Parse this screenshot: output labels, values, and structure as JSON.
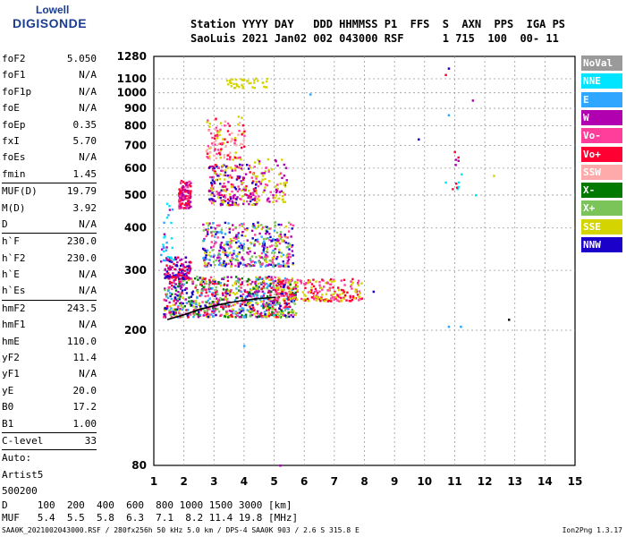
{
  "brand": {
    "line1": "Lowell",
    "line2": "DIGISONDE"
  },
  "header": {
    "line1": "Station YYYY DAY   DDD HHMMSS P1  FFS  S  AXN  PPS  IGA PS",
    "line2": "SaoLuis 2021 Jan02 002 043000 RSF      1 715  100  00- 11"
  },
  "params": [
    {
      "name": "foF2",
      "value": "5.050"
    },
    {
      "name": "foF1",
      "value": "N/A"
    },
    {
      "name": "foF1p",
      "value": "N/A"
    },
    {
      "name": "foE",
      "value": "N/A"
    },
    {
      "name": "foEp",
      "value": "0.35"
    },
    {
      "name": "fxI",
      "value": "5.70"
    },
    {
      "name": "foEs",
      "value": "N/A"
    },
    {
      "name": "fmin",
      "value": "1.45"
    },
    {
      "name": "MUF(D)",
      "value": "19.79",
      "sep": true
    },
    {
      "name": "M(D)",
      "value": "3.92"
    },
    {
      "name": "D",
      "value": "N/A"
    },
    {
      "name": "h`F",
      "value": "230.0",
      "sep": true
    },
    {
      "name": "h`F2",
      "value": "230.0"
    },
    {
      "name": "h`E",
      "value": "N/A"
    },
    {
      "name": "h`Es",
      "value": "N/A"
    },
    {
      "name": "hmF2",
      "value": "243.5",
      "sep": true
    },
    {
      "name": "hmF1",
      "value": "N/A"
    },
    {
      "name": "hmE",
      "value": "110.0"
    },
    {
      "name": "yF2",
      "value": "11.4"
    },
    {
      "name": "yF1",
      "value": "N/A"
    },
    {
      "name": "yE",
      "value": "20.0"
    },
    {
      "name": "B0",
      "value": "17.2"
    },
    {
      "name": "B1",
      "value": "1.00"
    },
    {
      "name": "C-level",
      "value": "33",
      "sep": true
    },
    {
      "name": "Auto:",
      "value": "",
      "sep": true
    },
    {
      "name": "Artist5",
      "value": ""
    },
    {
      "name": "500200",
      "value": ""
    }
  ],
  "legend": [
    {
      "label": "NoVal",
      "color": "#9a9a9a"
    },
    {
      "label": "NNE",
      "color": "#00e5ff"
    },
    {
      "label": "E",
      "color": "#2fa6ff"
    },
    {
      "label": "W",
      "color": "#b000b0"
    },
    {
      "label": "Vo-",
      "color": "#ff3d9a"
    },
    {
      "label": "Vo+",
      "color": "#ff0033"
    },
    {
      "label": "SSW",
      "color": "#ffaaaa"
    },
    {
      "label": "X-",
      "color": "#007a00"
    },
    {
      "label": "X+",
      "color": "#7ac45a"
    },
    {
      "label": "SSE",
      "color": "#d4d400"
    },
    {
      "label": "NNW",
      "color": "#1a00c8"
    }
  ],
  "muf_table": {
    "d_line": "D     100  200  400  600  800 1000 1500 3000 [km]",
    "muf_line": "MUF   5.4  5.5  5.8  6.3  7.1  8.2 11.4 19.8 [MHz]"
  },
  "footer": {
    "left": "SAA0K_2021002043000.RSF / 280fx256h 50 kHz 5.0 km / DPS-4 SAA0K 903 / 2.6 S 315.8 E",
    "right": "Ion2Png 1.3.17"
  },
  "chart_data": {
    "type": "scatter",
    "xlim": [
      1,
      15
    ],
    "ylim": [
      80,
      1280
    ],
    "y_scale": "log",
    "x_ticks": [
      1,
      2,
      3,
      4,
      5,
      6,
      7,
      8,
      9,
      10,
      11,
      12,
      13,
      14,
      15
    ],
    "y_ticks": [
      80,
      200,
      300,
      400,
      500,
      600,
      700,
      800,
      900,
      1000,
      1100,
      1280
    ],
    "grid": true,
    "trace": {
      "name": "",
      "x": [
        1.45,
        2.0,
        2.5,
        3.0,
        3.5,
        4.0,
        4.5,
        5.05
      ],
      "y": [
        215,
        222,
        230,
        236,
        241,
        245,
        248,
        250
      ]
    },
    "scatter_groups": [
      {
        "x": [
          1.3,
          5.7
        ],
        "y": [
          220,
          290
        ],
        "n": 900,
        "colors": [
          "#ff0033",
          "#ff3d9a",
          "#b000b0",
          "#1a00c8",
          "#d4d400",
          "#007a00",
          "#7ac45a",
          "#2fa6ff"
        ]
      },
      {
        "x": [
          5.0,
          7.9
        ],
        "y": [
          245,
          285
        ],
        "n": 220,
        "colors": [
          "#ff0033",
          "#ff3d9a",
          "#d4d400"
        ]
      },
      {
        "x": [
          1.3,
          2.2
        ],
        "y": [
          285,
          330
        ],
        "n": 120,
        "colors": [
          "#1a00c8",
          "#b000b0",
          "#ff0033"
        ]
      },
      {
        "x": [
          2.6,
          5.6
        ],
        "y": [
          310,
          420
        ],
        "n": 420,
        "colors": [
          "#d4d400",
          "#7ac45a",
          "#2fa6ff",
          "#b000b0",
          "#ff3d9a",
          "#1a00c8"
        ]
      },
      {
        "x": [
          1.8,
          2.2
        ],
        "y": [
          460,
          560
        ],
        "n": 120,
        "colors": [
          "#ff0033",
          "#ff3d9a",
          "#b000b0"
        ]
      },
      {
        "x": [
          2.8,
          4.4
        ],
        "y": [
          470,
          620
        ],
        "n": 240,
        "colors": [
          "#1a00c8",
          "#b000b0",
          "#ff0033",
          "#ff3d9a",
          "#d4d400"
        ]
      },
      {
        "x": [
          4.3,
          5.4
        ],
        "y": [
          480,
          650
        ],
        "n": 80,
        "colors": [
          "#d4d400",
          "#ff3d9a",
          "#b000b0"
        ]
      },
      {
        "x": [
          2.7,
          4.0
        ],
        "y": [
          640,
          860
        ],
        "n": 110,
        "colors": [
          "#ff3d9a",
          "#ffaaaa",
          "#d4d400",
          "#ff0033"
        ]
      },
      {
        "x": [
          3.4,
          4.8
        ],
        "y": [
          1040,
          1110
        ],
        "n": 40,
        "colors": [
          "#d4d400"
        ]
      },
      {
        "x": [
          1.2,
          1.7
        ],
        "y": [
          320,
          480
        ],
        "n": 30,
        "colors": [
          "#00e5ff",
          "#2fa6ff",
          "#b000b0"
        ]
      },
      {
        "x": [
          10.9,
          11.2
        ],
        "y": [
          520,
          680
        ],
        "n": 12,
        "colors": [
          "#00e5ff",
          "#ff0033",
          "#b000b0"
        ]
      }
    ],
    "isolated_points": [
      {
        "x": 10.8,
        "y": 1180,
        "color": "#1a00c8"
      },
      {
        "x": 10.7,
        "y": 1130,
        "color": "#ff0033"
      },
      {
        "x": 11.6,
        "y": 950,
        "color": "#b000b0"
      },
      {
        "x": 10.8,
        "y": 860,
        "color": "#2fa6ff"
      },
      {
        "x": 9.8,
        "y": 730,
        "color": "#1a00c8"
      },
      {
        "x": 11.0,
        "y": 670,
        "color": "#ff0033"
      },
      {
        "x": 12.3,
        "y": 570,
        "color": "#d4d400"
      },
      {
        "x": 10.7,
        "y": 545,
        "color": "#00e5ff"
      },
      {
        "x": 11.7,
        "y": 500,
        "color": "#00e5ff"
      },
      {
        "x": 12.8,
        "y": 215,
        "color": "#000000"
      },
      {
        "x": 11.2,
        "y": 205,
        "color": "#2fa6ff"
      },
      {
        "x": 10.8,
        "y": 205,
        "color": "#2fa6ff"
      },
      {
        "x": 6.2,
        "y": 990,
        "color": "#2fa6ff"
      },
      {
        "x": 8.3,
        "y": 260,
        "color": "#1a00c8"
      },
      {
        "x": 4.0,
        "y": 180,
        "color": "#2fa6ff"
      },
      {
        "x": 5.2,
        "y": 80,
        "color": "#b000b0"
      }
    ]
  }
}
